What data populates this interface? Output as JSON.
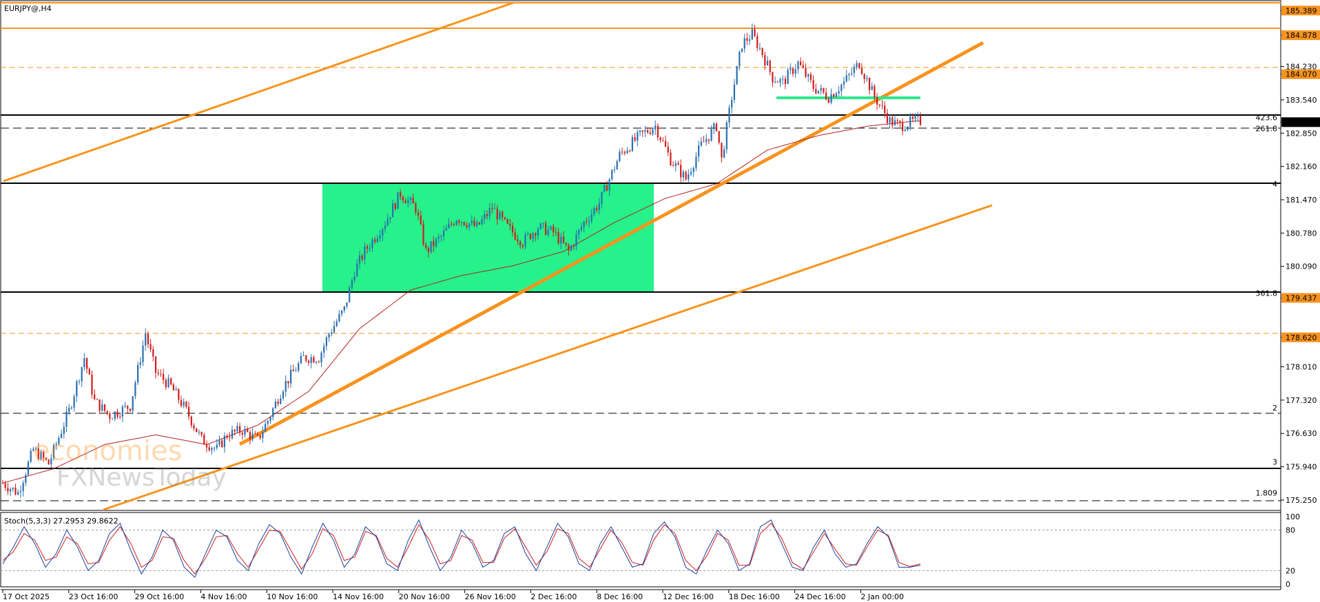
{
  "chart_data": [
    {
      "type": "candlestick",
      "title": "EURJPY@,H4",
      "y_axis_ticks": [
        "185.389",
        "184.878",
        "184.230",
        "184.070",
        "183.540",
        "183.077",
        "182.850",
        "182.160",
        "181.470",
        "180.780",
        "180.090",
        "179.437",
        "178.620",
        "178.010",
        "177.320",
        "176.630",
        "175.940",
        "175.250"
      ],
      "x_axis_ticks": [
        "17 Oct 2025",
        "23 Oct 16:00",
        "29 Oct 16:00",
        "4 Nov 16:00",
        "10 Nov 16:00",
        "14 Nov 16:00",
        "20 Nov 16:00",
        "26 Nov 16:00",
        "2 Dec 16:00",
        "8 Dec 16:00",
        "12 Dec 16:00",
        "18 Dec 16:00",
        "24 Dec 16:00",
        "2 Jan 00:00"
      ],
      "ylim": [
        175.05,
        185.55
      ],
      "price_tags": [
        {
          "price": 185.389,
          "label": "185.389",
          "color": "#f7931e"
        },
        {
          "price": 184.878,
          "label": "184.878",
          "color": "#f7931e"
        },
        {
          "price": 184.07,
          "label": "184.070",
          "color": "#f7931e"
        },
        {
          "price": 183.077,
          "label": "183.077",
          "color": "#000000"
        },
        {
          "price": 179.437,
          "label": "179.437",
          "color": "#f7931e"
        },
        {
          "price": 178.62,
          "label": "178.620",
          "color": "#f7931e"
        }
      ],
      "level_labels": [
        {
          "text": "423.6",
          "price": 183.077
        },
        {
          "text": "261.8",
          "price": 182.85
        },
        {
          "text": "4",
          "price": 181.7
        },
        {
          "text": "361.8",
          "price": 179.437
        },
        {
          "text": "2",
          "price": 177.06
        },
        {
          "text": "3",
          "price": 175.94
        },
        {
          "text": "1.809",
          "price": 175.3
        }
      ],
      "close_path": [
        [
          0,
          175.6
        ],
        [
          6,
          175.4
        ],
        [
          12,
          176.3
        ],
        [
          18,
          176.0
        ],
        [
          26,
          177.1
        ],
        [
          32,
          178.2
        ],
        [
          36,
          177.3
        ],
        [
          42,
          177.0
        ],
        [
          50,
          177.2
        ],
        [
          56,
          178.7
        ],
        [
          60,
          177.9
        ],
        [
          66,
          177.6
        ],
        [
          72,
          177.1
        ],
        [
          78,
          176.5
        ],
        [
          84,
          176.3
        ],
        [
          88,
          176.6
        ],
        [
          94,
          176.7
        ],
        [
          100,
          176.5
        ],
        [
          104,
          176.9
        ],
        [
          110,
          177.6
        ],
        [
          118,
          178.2
        ],
        [
          124,
          178.2
        ],
        [
          128,
          178.7
        ],
        [
          134,
          179.2
        ],
        [
          138,
          180.0
        ],
        [
          142,
          180.4
        ],
        [
          150,
          181.0
        ],
        [
          156,
          181.6
        ],
        [
          162,
          181.3
        ],
        [
          166,
          180.4
        ],
        [
          172,
          180.7
        ],
        [
          178,
          181.1
        ],
        [
          186,
          180.9
        ],
        [
          192,
          181.3
        ],
        [
          198,
          180.9
        ],
        [
          204,
          180.6
        ],
        [
          210,
          180.9
        ],
        [
          216,
          180.8
        ],
        [
          222,
          180.4
        ],
        [
          228,
          181.0
        ],
        [
          234,
          181.4
        ],
        [
          242,
          182.4
        ],
        [
          250,
          182.8
        ],
        [
          256,
          183.0
        ],
        [
          262,
          182.3
        ],
        [
          268,
          181.9
        ],
        [
          274,
          182.6
        ],
        [
          280,
          183.0
        ],
        [
          282,
          182.3
        ],
        [
          286,
          183.6
        ],
        [
          290,
          184.7
        ],
        [
          294,
          184.9
        ],
        [
          298,
          184.5
        ],
        [
          302,
          184.0
        ],
        [
          306,
          183.9
        ],
        [
          312,
          184.3
        ],
        [
          318,
          183.8
        ],
        [
          324,
          183.6
        ],
        [
          330,
          183.9
        ],
        [
          336,
          184.3
        ],
        [
          342,
          183.6
        ],
        [
          348,
          183.1
        ],
        [
          352,
          183.0
        ],
        [
          358,
          183.1
        ]
      ],
      "moving_average": [
        [
          0,
          175.6
        ],
        [
          20,
          175.9
        ],
        [
          40,
          176.4
        ],
        [
          60,
          176.6
        ],
        [
          80,
          176.4
        ],
        [
          100,
          176.8
        ],
        [
          120,
          177.5
        ],
        [
          140,
          178.8
        ],
        [
          160,
          179.6
        ],
        [
          180,
          179.9
        ],
        [
          200,
          180.1
        ],
        [
          220,
          180.4
        ],
        [
          240,
          181.0
        ],
        [
          260,
          181.5
        ],
        [
          280,
          181.8
        ],
        [
          300,
          182.5
        ],
        [
          320,
          182.8
        ],
        [
          340,
          183.0
        ],
        [
          358,
          183.1
        ]
      ],
      "stochastic": {
        "label": "Stoch(5,3,3) 27.2953 29.8622",
        "scale_labels": [
          "100",
          "80",
          "20",
          "0"
        ],
        "k": [
          30,
          55,
          85,
          60,
          25,
          45,
          80,
          55,
          20,
          35,
          75,
          90,
          50,
          15,
          40,
          80,
          65,
          25,
          10,
          45,
          80,
          70,
          35,
          20,
          60,
          88,
          75,
          40,
          15,
          55,
          90,
          65,
          25,
          45,
          85,
          70,
          30,
          20,
          65,
          95,
          55,
          20,
          40,
          80,
          60,
          25,
          35,
          75,
          85,
          45,
          20,
          55,
          90,
          70,
          30,
          20,
          60,
          85,
          55,
          25,
          30,
          75,
          92,
          70,
          25,
          15,
          50,
          80,
          60,
          20,
          30,
          85,
          95,
          60,
          25,
          20,
          55,
          80,
          45,
          25,
          30,
          60,
          85,
          70,
          25,
          25,
          28
        ],
        "d": [
          35,
          48,
          75,
          65,
          35,
          40,
          70,
          60,
          30,
          32,
          65,
          85,
          60,
          25,
          35,
          70,
          68,
          35,
          15,
          38,
          70,
          72,
          45,
          25,
          52,
          80,
          78,
          50,
          22,
          45,
          82,
          72,
          35,
          40,
          78,
          72,
          38,
          25,
          55,
          88,
          65,
          30,
          35,
          72,
          65,
          32,
          32,
          68,
          82,
          55,
          28,
          48,
          82,
          75,
          38,
          25,
          52,
          80,
          62,
          32,
          28,
          65,
          88,
          75,
          35,
          20,
          42,
          75,
          65,
          28,
          28,
          75,
          90,
          68,
          32,
          22,
          48,
          75,
          52,
          30,
          28,
          55,
          80,
          72,
          32,
          26,
          30
        ]
      }
    }
  ]
}
